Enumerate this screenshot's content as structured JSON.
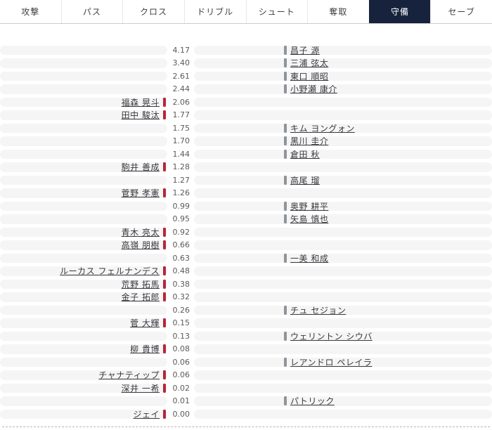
{
  "tabs": [
    {
      "key": "attack",
      "label": "攻撃",
      "selected": false
    },
    {
      "key": "pass",
      "label": "パス",
      "selected": false
    },
    {
      "key": "cross",
      "label": "クロス",
      "selected": false
    },
    {
      "key": "dribble",
      "label": "ドリブル",
      "selected": false
    },
    {
      "key": "shoot",
      "label": "シュート",
      "selected": false
    },
    {
      "key": "steal",
      "label": "奪取",
      "selected": false
    },
    {
      "key": "defense",
      "label": "守備",
      "selected": true
    },
    {
      "key": "save",
      "label": "セーブ",
      "selected": false
    }
  ],
  "colors": {
    "selected_tab_bg": "#17233c",
    "left_team_marker": "#b4273a",
    "right_team_marker": "#8f9499",
    "row_track": "#f5f5f6"
  },
  "chart_data": {
    "type": "bar",
    "layout": "diverging-player-ranking",
    "value_format": "0.00",
    "legend": "left ticks = home team (red), right ticks = away team (gray)",
    "rows": [
      {
        "value": "4.17",
        "player": "昌子 源",
        "side": "right"
      },
      {
        "value": "3.40",
        "player": "三浦 弦太",
        "side": "right"
      },
      {
        "value": "2.61",
        "player": "東口 順昭",
        "side": "right"
      },
      {
        "value": "2.44",
        "player": "小野瀬 康介",
        "side": "right"
      },
      {
        "value": "2.06",
        "player": "福森 晃斗",
        "side": "left"
      },
      {
        "value": "1.77",
        "player": "田中 駿汰",
        "side": "left"
      },
      {
        "value": "1.75",
        "player": "キム ヨングォン",
        "side": "right"
      },
      {
        "value": "1.70",
        "player": "黒川 圭介",
        "side": "right"
      },
      {
        "value": "1.44",
        "player": "倉田 秋",
        "side": "right"
      },
      {
        "value": "1.28",
        "player": "駒井 善成",
        "side": "left"
      },
      {
        "value": "1.27",
        "player": "高尾 瑠",
        "side": "right"
      },
      {
        "value": "1.26",
        "player": "菅野 孝憲",
        "side": "left"
      },
      {
        "value": "0.99",
        "player": "奥野 耕平",
        "side": "right"
      },
      {
        "value": "0.95",
        "player": "矢島 慎也",
        "side": "right"
      },
      {
        "value": "0.92",
        "player": "青木 亮太",
        "side": "left"
      },
      {
        "value": "0.66",
        "player": "高嶺 朋樹",
        "side": "left"
      },
      {
        "value": "0.63",
        "player": "一美 和成",
        "side": "right"
      },
      {
        "value": "0.48",
        "player": "ルーカス フェルナンデス",
        "side": "left"
      },
      {
        "value": "0.38",
        "player": "荒野 拓馬",
        "side": "left"
      },
      {
        "value": "0.32",
        "player": "金子 拓郎",
        "side": "left"
      },
      {
        "value": "0.26",
        "player": "チュ セジョン",
        "side": "right"
      },
      {
        "value": "0.15",
        "player": "菅 大輝",
        "side": "left"
      },
      {
        "value": "0.13",
        "player": "ウェリントン シウバ",
        "side": "right"
      },
      {
        "value": "0.08",
        "player": "柳 貴博",
        "side": "left"
      },
      {
        "value": "0.06",
        "player": "レアンドロ ペレイラ",
        "side": "right"
      },
      {
        "value": "0.06",
        "player": "チャナティップ",
        "side": "left"
      },
      {
        "value": "0.02",
        "player": "深井 一希",
        "side": "left"
      },
      {
        "value": "0.01",
        "player": "パトリック",
        "side": "right"
      },
      {
        "value": "0.00",
        "player": "ジェイ",
        "side": "left"
      }
    ]
  }
}
